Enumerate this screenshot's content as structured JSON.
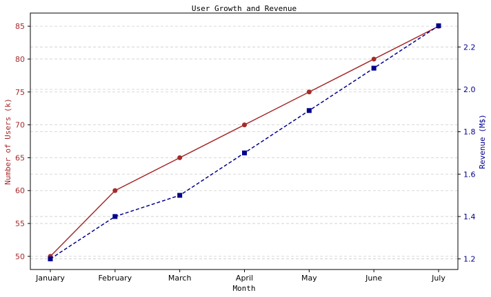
{
  "chart_data": {
    "type": "line",
    "title": "User Growth and Revenue",
    "xlabel": "Month",
    "categories": [
      "January",
      "February",
      "March",
      "April",
      "May",
      "June",
      "July"
    ],
    "grid": true,
    "axes": {
      "left": {
        "label": "Number of Users (k)",
        "ylim": [
          48,
          87
        ],
        "ticks": [
          50,
          55,
          60,
          65,
          70,
          75,
          80,
          85
        ],
        "color": "#a52a2a"
      },
      "right": {
        "label": "Revenue (M$)",
        "ylim": [
          1.15,
          2.36
        ],
        "ticks": [
          "1.2",
          "1.4",
          "1.6",
          "1.8",
          "2.0",
          "2.2"
        ],
        "color": "#00008b"
      }
    },
    "series": [
      {
        "axis": "left",
        "values": [
          50,
          60,
          65,
          70,
          75,
          80,
          85
        ],
        "color": "#a52a2a",
        "linestyle": "solid",
        "marker": "circle"
      },
      {
        "axis": "right",
        "values": [
          1.2,
          1.4,
          1.5,
          1.7,
          1.9,
          2.1,
          2.3
        ],
        "color": "#00008b",
        "linestyle": "dashed",
        "marker": "square"
      }
    ]
  }
}
